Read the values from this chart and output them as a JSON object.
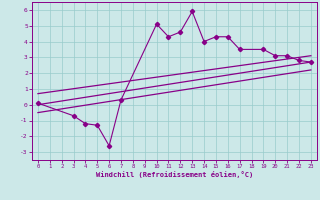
{
  "xlabel": "Windchill (Refroidissement éolien,°C)",
  "bg_color": "#cce8e8",
  "grid_color": "#99cccc",
  "line_color": "#880088",
  "x_data": [
    0,
    1,
    2,
    3,
    4,
    5,
    6,
    7,
    8,
    9,
    10,
    11,
    12,
    13,
    14,
    15,
    16,
    17,
    18,
    19,
    20,
    21,
    22,
    23
  ],
  "y_scatter": [
    0.1,
    null,
    null,
    -0.7,
    -1.2,
    -1.3,
    -2.6,
    0.3,
    null,
    null,
    5.1,
    4.3,
    4.6,
    5.9,
    4.0,
    4.3,
    4.3,
    3.5,
    null,
    3.5,
    3.1,
    3.1,
    2.8,
    2.7
  ],
  "ylim": [
    -3.5,
    6.5
  ],
  "xlim": [
    -0.5,
    23.5
  ],
  "yticks": [
    -3,
    -2,
    -1,
    0,
    1,
    2,
    3,
    4,
    5,
    6
  ],
  "xticks": [
    0,
    1,
    2,
    3,
    4,
    5,
    6,
    7,
    8,
    9,
    10,
    11,
    12,
    13,
    14,
    15,
    16,
    17,
    18,
    19,
    20,
    21,
    22,
    23
  ],
  "reg_lines": [
    {
      "x0": 0,
      "y0": 0.7,
      "x1": 23,
      "y1": 3.1
    },
    {
      "x0": 0,
      "y0": 0.0,
      "x1": 23,
      "y1": 2.7
    },
    {
      "x0": 0,
      "y0": -0.5,
      "x1": 23,
      "y1": 2.2
    }
  ]
}
